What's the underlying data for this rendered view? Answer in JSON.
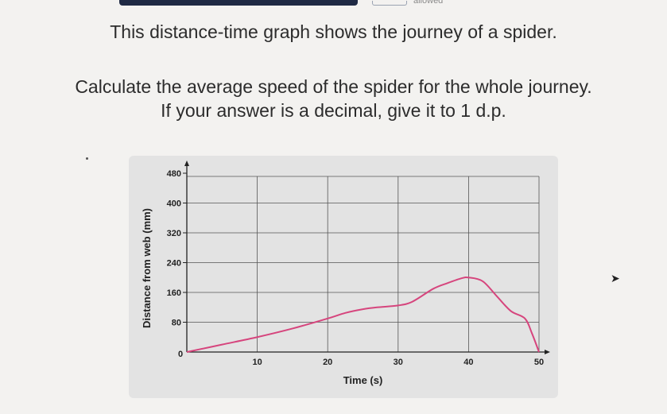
{
  "header": {
    "allowed_text": "allowed"
  },
  "question": {
    "line1": "This distance-time graph shows the journey of a spider.",
    "line2": "Calculate the average speed of the spider for the whole journey.",
    "line3": "If your answer is a decimal, give it to 1 d.p."
  },
  "colors": {
    "curve": "#d6457d",
    "grid": "#555555",
    "panel": "#e3e3e3"
  },
  "chart_data": {
    "type": "line",
    "title": "",
    "xlabel": "Time (s)",
    "ylabel": "Distance from web (mm)",
    "xlim": [
      0,
      50
    ],
    "ylim": [
      0,
      480
    ],
    "x_ticks": [
      10,
      20,
      30,
      40,
      50
    ],
    "x_tick_labels": [
      "10",
      "20",
      "30",
      "40",
      "50"
    ],
    "y_ticks": [
      80,
      160,
      240,
      320,
      400,
      480
    ],
    "y_tick_labels": [
      "80",
      "160",
      "240",
      "320",
      "400",
      "480"
    ],
    "origin_label": "0",
    "grid": true,
    "series": [
      {
        "name": "",
        "points": [
          [
            0,
            0
          ],
          [
            5,
            20
          ],
          [
            10,
            40
          ],
          [
            15,
            63
          ],
          [
            20,
            90
          ],
          [
            22.5,
            105
          ],
          [
            25,
            115
          ],
          [
            27,
            120
          ],
          [
            30,
            125
          ],
          [
            32,
            135
          ],
          [
            35,
            170
          ],
          [
            37,
            185
          ],
          [
            39,
            198
          ],
          [
            40,
            200
          ],
          [
            42,
            190
          ],
          [
            44,
            150
          ],
          [
            46,
            110
          ],
          [
            48,
            90
          ],
          [
            49,
            50
          ],
          [
            50,
            0
          ]
        ]
      }
    ]
  }
}
